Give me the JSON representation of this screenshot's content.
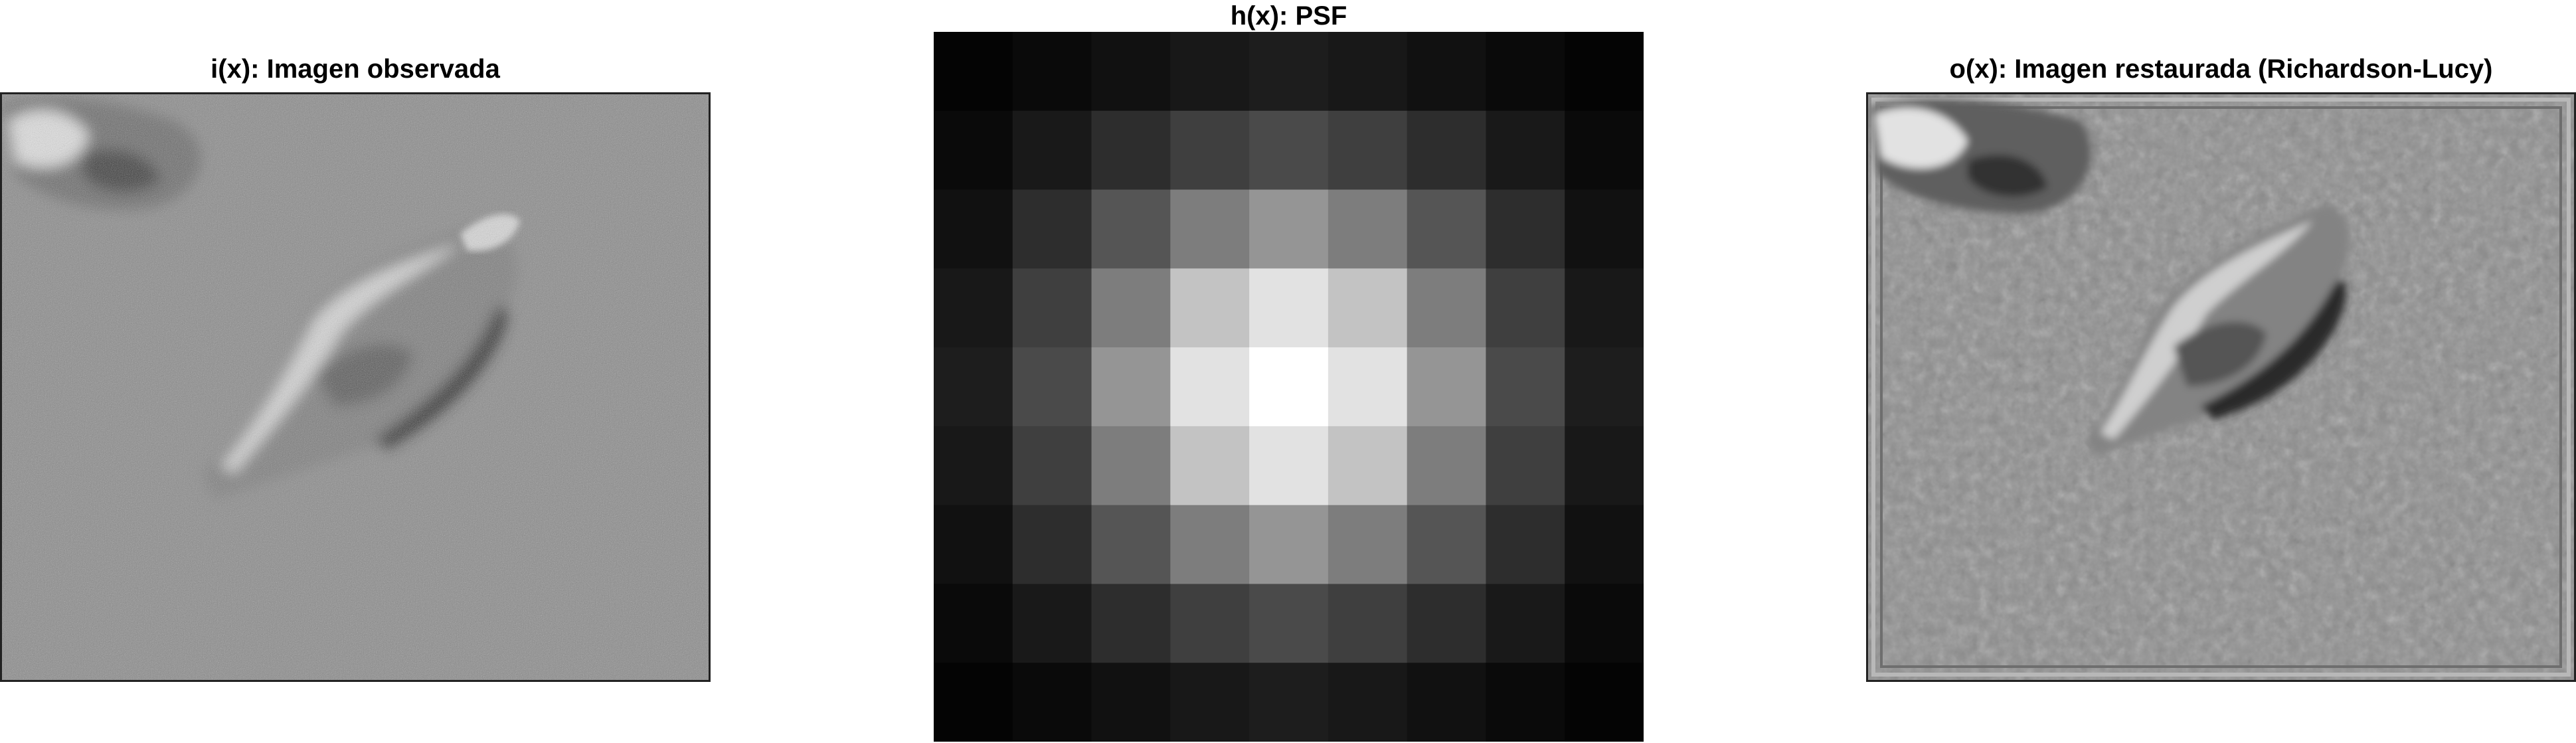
{
  "figure": {
    "panels": [
      {
        "id": "observed",
        "title": "i(x): Imagen observada"
      },
      {
        "id": "psf",
        "title": "h(x): PSF"
      },
      {
        "id": "restored",
        "title": "o(x): Imagen restaurada (Richardson-Lucy)"
      }
    ]
  },
  "psf_grid": {
    "size": 9,
    "gray_levels": [
      [
        4,
        10,
        17,
        24,
        29,
        24,
        17,
        10,
        4
      ],
      [
        10,
        25,
        45,
        63,
        74,
        63,
        45,
        25,
        10
      ],
      [
        17,
        45,
        85,
        125,
        149,
        125,
        85,
        45,
        17
      ],
      [
        24,
        63,
        125,
        195,
        226,
        195,
        125,
        63,
        24
      ],
      [
        29,
        74,
        149,
        226,
        255,
        226,
        149,
        74,
        29
      ],
      [
        24,
        63,
        125,
        195,
        226,
        195,
        125,
        63,
        24
      ],
      [
        17,
        45,
        85,
        125,
        149,
        125,
        85,
        45,
        17
      ],
      [
        10,
        25,
        45,
        63,
        74,
        63,
        45,
        25,
        10
      ],
      [
        4,
        10,
        17,
        24,
        29,
        24,
        17,
        10,
        4
      ]
    ]
  },
  "colors": {
    "noise_background": "#8a8a8a",
    "cell_light": "#d8d8d8",
    "cell_shadow": "#2e2e2e"
  }
}
